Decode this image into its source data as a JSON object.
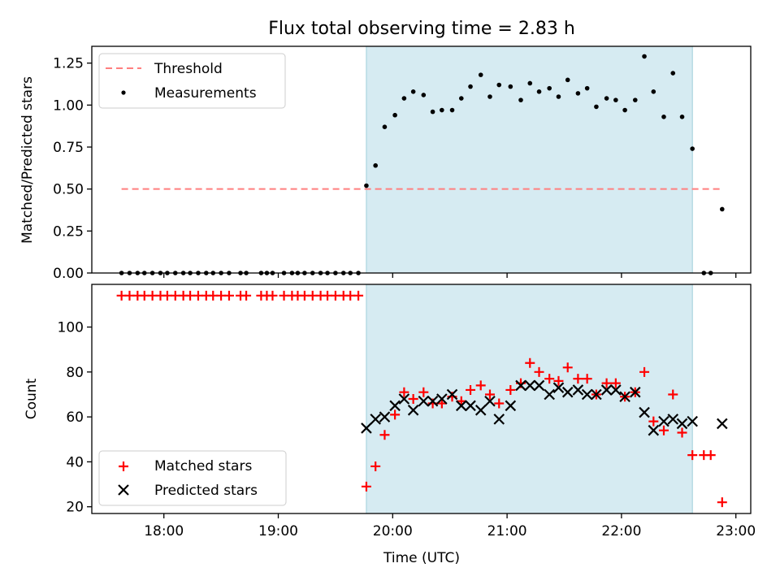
{
  "chart_data": [
    {
      "type": "scatter",
      "title": "Flux total observing time = 2.83 h",
      "xlabel": "",
      "ylabel": "Matched/Predicted stars",
      "xlim_hours": [
        17.37,
        23.13
      ],
      "ylim": [
        0.0,
        1.35
      ],
      "yticks": [
        0.0,
        0.25,
        0.5,
        0.75,
        1.0,
        1.25
      ],
      "ytick_labels": [
        "0.00",
        "0.25",
        "0.50",
        "0.75",
        "1.00",
        "1.25"
      ],
      "shaded_region_hours": [
        19.77,
        22.62
      ],
      "threshold": {
        "name": "Threshold",
        "value": 0.5,
        "x_hours": [
          17.63,
          22.88
        ],
        "color": "#ff7f7f",
        "style": "dashed"
      },
      "series": [
        {
          "name": "Measurements",
          "marker": "dot",
          "color": "#000000",
          "x_hours": [
            17.63,
            17.7,
            17.77,
            17.83,
            17.9,
            17.97,
            18.03,
            18.1,
            18.17,
            18.23,
            18.3,
            18.37,
            18.43,
            18.5,
            18.57,
            18.67,
            18.72,
            18.85,
            18.9,
            18.95,
            19.05,
            19.12,
            19.17,
            19.23,
            19.3,
            19.37,
            19.43,
            19.5,
            19.57,
            19.63,
            19.7,
            19.77,
            19.85,
            19.93,
            20.02,
            20.1,
            20.18,
            20.27,
            20.35,
            20.43,
            20.52,
            20.6,
            20.68,
            20.77,
            20.85,
            20.93,
            21.03,
            21.12,
            21.2,
            21.28,
            21.37,
            21.45,
            21.53,
            21.62,
            21.7,
            21.78,
            21.87,
            21.95,
            22.03,
            22.12,
            22.2,
            22.28,
            22.37,
            22.45,
            22.53,
            22.62,
            22.72,
            22.78,
            22.88
          ],
          "y": [
            0,
            0,
            0,
            0,
            0,
            0,
            0,
            0,
            0,
            0,
            0,
            0,
            0,
            0,
            0,
            0,
            0,
            0,
            0,
            0,
            0,
            0,
            0,
            0,
            0,
            0,
            0,
            0,
            0,
            0,
            0,
            0.52,
            0.64,
            0.87,
            0.94,
            1.04,
            1.08,
            1.06,
            0.96,
            0.97,
            0.97,
            1.04,
            1.11,
            1.18,
            1.05,
            1.12,
            1.11,
            1.03,
            1.13,
            1.08,
            1.1,
            1.05,
            1.15,
            1.07,
            1.1,
            0.99,
            1.04,
            1.03,
            0.97,
            1.03,
            1.29,
            1.08,
            0.93,
            1.19,
            0.93,
            0.74,
            0,
            0,
            0.38
          ]
        }
      ],
      "legend": {
        "position": "upper-left",
        "entries": [
          "Threshold",
          "Measurements"
        ]
      }
    },
    {
      "type": "scatter",
      "title": "",
      "xlabel": "Time (UTC)",
      "ylabel": "Count",
      "xlim_hours": [
        17.37,
        23.13
      ],
      "ylim": [
        17,
        119
      ],
      "xticks_hours": [
        18,
        19,
        20,
        21,
        22,
        23
      ],
      "xtick_labels": [
        "18:00",
        "19:00",
        "20:00",
        "21:00",
        "22:00",
        "23:00"
      ],
      "yticks": [
        20,
        40,
        60,
        80,
        100
      ],
      "ytick_labels": [
        "20",
        "40",
        "60",
        "80",
        "100"
      ],
      "shaded_region_hours": [
        19.77,
        22.62
      ],
      "series": [
        {
          "name": "Matched stars",
          "marker": "plus",
          "color": "#ff0000",
          "x_hours": [
            17.63,
            17.7,
            17.77,
            17.83,
            17.9,
            17.97,
            18.03,
            18.1,
            18.17,
            18.23,
            18.3,
            18.37,
            18.43,
            18.5,
            18.57,
            18.67,
            18.72,
            18.85,
            18.9,
            18.95,
            19.05,
            19.12,
            19.17,
            19.23,
            19.3,
            19.37,
            19.43,
            19.5,
            19.57,
            19.63,
            19.7,
            19.77,
            19.85,
            19.93,
            20.02,
            20.1,
            20.18,
            20.27,
            20.35,
            20.43,
            20.52,
            20.6,
            20.68,
            20.77,
            20.85,
            20.93,
            21.03,
            21.12,
            21.2,
            21.28,
            21.37,
            21.45,
            21.53,
            21.62,
            21.7,
            21.78,
            21.87,
            21.95,
            22.03,
            22.12,
            22.2,
            22.28,
            22.37,
            22.45,
            22.53,
            22.62,
            22.72,
            22.78,
            22.88
          ],
          "y": [
            114,
            114,
            114,
            114,
            114,
            114,
            114,
            114,
            114,
            114,
            114,
            114,
            114,
            114,
            114,
            114,
            114,
            114,
            114,
            114,
            114,
            114,
            114,
            114,
            114,
            114,
            114,
            114,
            114,
            114,
            114,
            29,
            38,
            52,
            61,
            71,
            68,
            71,
            66,
            66,
            69,
            67,
            72,
            74,
            70,
            66,
            72,
            75,
            84,
            80,
            77,
            76,
            82,
            77,
            77,
            70,
            75,
            75,
            69,
            71,
            80,
            58,
            54,
            70,
            53,
            43,
            43,
            43,
            22
          ]
        },
        {
          "name": "Predicted stars",
          "marker": "x",
          "color": "#000000",
          "x_hours": [
            19.77,
            19.85,
            19.93,
            20.02,
            20.1,
            20.18,
            20.27,
            20.35,
            20.43,
            20.52,
            20.6,
            20.68,
            20.77,
            20.85,
            20.93,
            21.03,
            21.12,
            21.2,
            21.28,
            21.37,
            21.45,
            21.53,
            21.62,
            21.7,
            21.78,
            21.87,
            21.95,
            22.03,
            22.12,
            22.2,
            22.28,
            22.37,
            22.45,
            22.53,
            22.62,
            22.88
          ],
          "y": [
            55,
            59,
            60,
            65,
            68,
            63,
            67,
            67,
            68,
            70,
            65,
            65,
            63,
            67,
            59,
            65,
            74,
            74,
            74,
            70,
            73,
            71,
            72,
            70,
            70,
            72,
            72,
            69,
            71,
            62,
            54,
            58,
            59,
            57,
            58,
            57
          ]
        }
      ],
      "legend": {
        "position": "lower-left",
        "entries": [
          "Matched stars",
          "Predicted stars"
        ]
      }
    }
  ]
}
